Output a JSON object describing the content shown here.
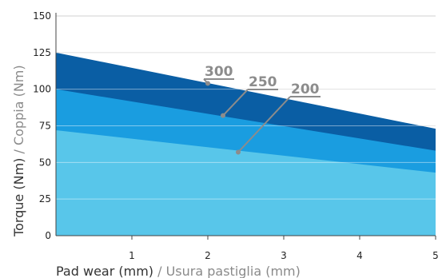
{
  "chart_data": {
    "type": "area",
    "x": [
      0,
      5
    ],
    "xticks": [
      1,
      2,
      3,
      4,
      5
    ],
    "yticks": [
      0,
      25,
      50,
      75,
      100,
      125,
      150
    ],
    "xlim": [
      0,
      5
    ],
    "ylim": [
      0,
      150
    ],
    "xlabel_main": "Pad wear (mm)",
    "xlabel_alt": " / Usura pastiglia (mm)",
    "ylabel_main": "Torque (Nm)",
    "ylabel_alt": " / Coppia (Nm)",
    "grid": "horizontal",
    "series": [
      {
        "name": "300",
        "values": [
          125,
          73
        ],
        "color": "#0a5ea4",
        "label_at": [
          2.0,
          104
        ]
      },
      {
        "name": "250",
        "values": [
          100,
          58
        ],
        "color": "#1a9de0",
        "label_at": [
          2.2,
          82
        ]
      },
      {
        "name": "200",
        "values": [
          72,
          43
        ],
        "color": "#58c6ea",
        "label_at": [
          2.4,
          57
        ]
      }
    ]
  }
}
